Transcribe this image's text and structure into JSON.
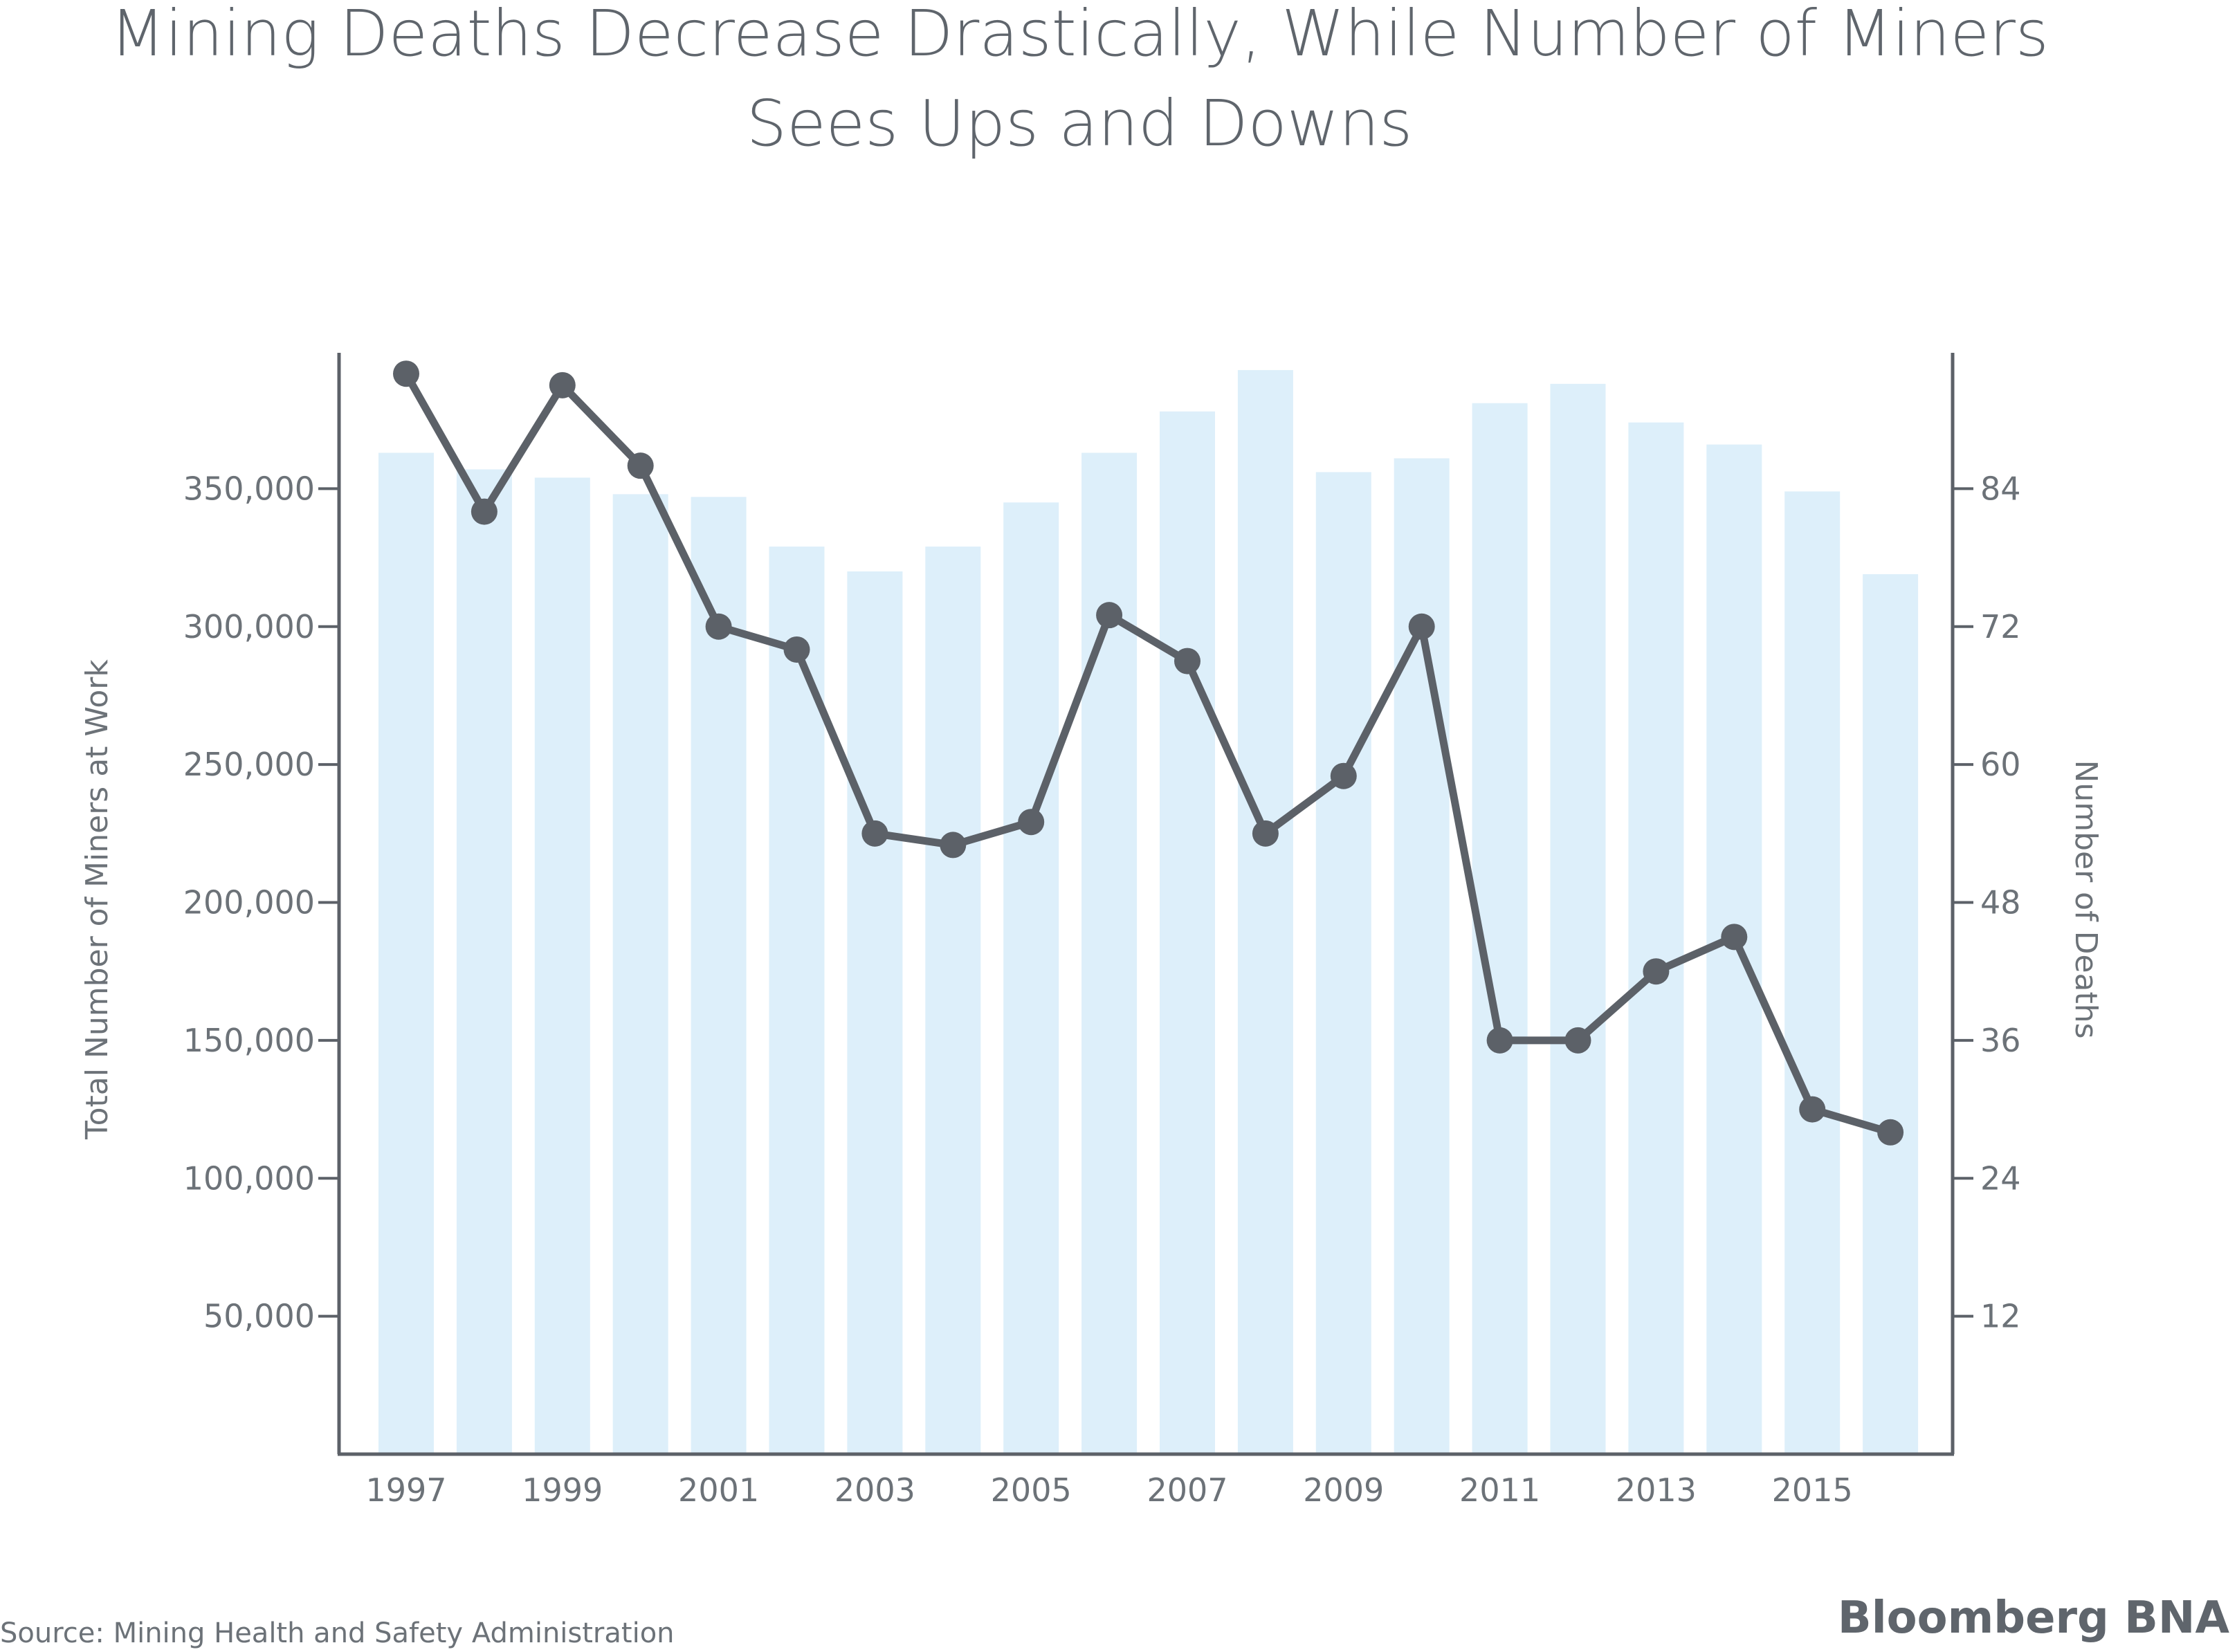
{
  "chart_data": {
    "type": "bar+line",
    "title_lines": [
      "Mining Deaths Decrease Drastically, While Number of Miners",
      "Sees Ups and Downs"
    ],
    "ylabel_left": "Total Number of Miners at Work",
    "ylabel_right": "Number of Deaths",
    "source": "Source: Mining Health and Safety Administration",
    "brand": "Bloomberg BNA",
    "x": [
      1997,
      1998,
      1999,
      2000,
      2001,
      2002,
      2003,
      2004,
      2005,
      2006,
      2007,
      2008,
      2009,
      2010,
      2011,
      2012,
      2013,
      2014,
      2015,
      2016
    ],
    "x_tick_labels": [
      "1997",
      "1999",
      "2001",
      "2003",
      "2005",
      "2007",
      "2009",
      "2011",
      "2013",
      "2015"
    ],
    "left_axis": {
      "range": [
        0,
        400000
      ],
      "ticks": [
        50000,
        100000,
        150000,
        200000,
        250000,
        300000,
        350000
      ],
      "tick_labels": [
        "50,000",
        "100,000",
        "150,000",
        "200,000",
        "250,000",
        "300,000",
        "350,000"
      ]
    },
    "right_axis": {
      "range": [
        0,
        96
      ],
      "ticks": [
        12,
        24,
        36,
        48,
        60,
        72,
        84
      ],
      "tick_labels": [
        "12",
        "24",
        "36",
        "48",
        "60",
        "72",
        "84"
      ]
    },
    "series": [
      {
        "name": "Total Number of Miners at Work",
        "type": "bar",
        "axis": "left",
        "values": [
          363000,
          357000,
          354000,
          348000,
          347000,
          329000,
          320000,
          329000,
          345000,
          363000,
          378000,
          393000,
          356000,
          361000,
          381000,
          388000,
          374000,
          366000,
          349000,
          319000
        ]
      },
      {
        "name": "Number of Deaths",
        "type": "line",
        "axis": "right",
        "values": [
          94,
          82,
          93,
          86,
          72,
          70,
          54,
          53,
          55,
          73,
          69,
          54,
          59,
          72,
          36,
          36,
          42,
          45,
          30,
          28
        ]
      }
    ],
    "colors": {
      "bar": "#ddeffa",
      "line": "#5c6168",
      "axis": "#5c6168",
      "text": "#6c7278"
    }
  }
}
